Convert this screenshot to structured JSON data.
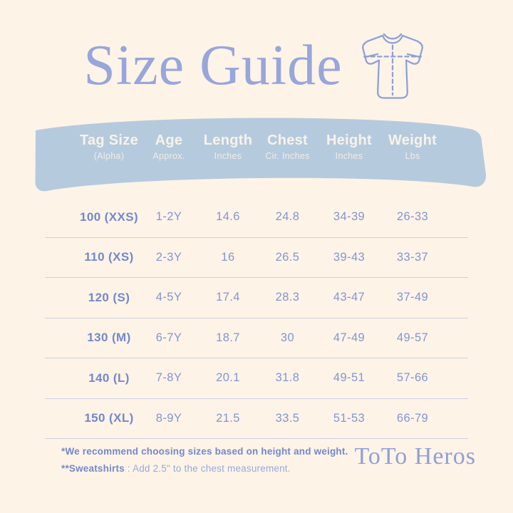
{
  "header": {
    "title": "Size Guide"
  },
  "brand": {
    "name": "ToTo Heros"
  },
  "icons": {
    "tshirt": "tshirt-outline-icon"
  },
  "footnotes": {
    "line1": "*We recommend choosing sizes based on height and weight.",
    "line2_bold": "**Sweatshirts",
    "line2_rest": " : Add 2.5\" to the chest measurement."
  },
  "chart_data": {
    "type": "table",
    "title": "Size Guide",
    "columns": [
      {
        "label": "Tag Size",
        "sub": "(Alpha)"
      },
      {
        "label": "Age",
        "sub": "Approx."
      },
      {
        "label": "Length",
        "sub": "Inches"
      },
      {
        "label": "Chest",
        "sub": "Cir. Inches"
      },
      {
        "label": "Height",
        "sub": "Inches"
      },
      {
        "label": "Weight",
        "sub": "Lbs"
      }
    ],
    "rows": [
      [
        "100 (XXS)",
        "1-2Y",
        "14.6",
        "24.8",
        "34-39",
        "26-33"
      ],
      [
        "110 (XS)",
        "2-3Y",
        "16",
        "26.5",
        "39-43",
        "33-37"
      ],
      [
        "120 (S)",
        "4-5Y",
        "17.4",
        "28.3",
        "43-47",
        "37-49"
      ],
      [
        "130 (M)",
        "6-7Y",
        "18.7",
        "30",
        "47-49",
        "49-57"
      ],
      [
        "140 (L)",
        "7-8Y",
        "20.1",
        "31.8",
        "49-51",
        "57-66"
      ],
      [
        "150 (XL)",
        "8-9Y",
        "21.5",
        "33.5",
        "51-53",
        "66-79"
      ]
    ]
  },
  "colors": {
    "background": "#fdf3e7",
    "banner": "#b6cade",
    "banner_text": "#f8f3e8",
    "title": "#97a6db",
    "tag": "#7488cc",
    "value": "#8296d2",
    "divider": "#cdd2e0",
    "footnote_bold": "#7488cc",
    "footnote_regular": "#9aa8da",
    "brand": "#8fa0d5"
  }
}
